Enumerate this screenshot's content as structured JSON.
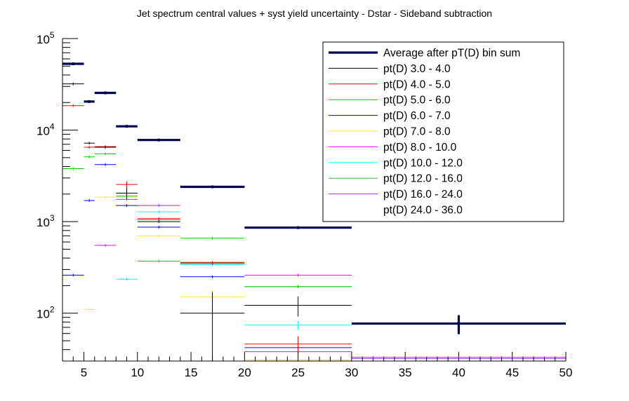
{
  "chart_data": {
    "type": "line",
    "title": "Jet spectrum central values + syst yield uncertainty - Dstar - Sideband subtraction",
    "xlabel": "",
    "ylabel": "",
    "xlim": [
      3,
      50
    ],
    "ylim": [
      30,
      100000
    ],
    "yscale": "log",
    "grid": false,
    "legend_position": "top-right",
    "x_ticks": [
      5,
      10,
      15,
      20,
      25,
      30,
      35,
      40,
      45,
      50
    ],
    "x_tick_labels": [
      "5",
      "10",
      "15",
      "20",
      "25",
      "30",
      "35",
      "40",
      "45",
      "50"
    ],
    "y_ticks": [
      {
        "value": 100,
        "base": "10",
        "exp": "2"
      },
      {
        "value": 1000,
        "base": "10",
        "exp": "3"
      },
      {
        "value": 10000,
        "base": "10",
        "exp": "4"
      },
      {
        "value": 100000,
        "base": "10",
        "exp": "5"
      }
    ],
    "series": [
      {
        "name": "Average after pT(D) bin sum",
        "color": "#000055",
        "width": 3.2,
        "bins": [
          [
            3,
            5,
            53000,
            0
          ],
          [
            5,
            6,
            20500,
            0
          ],
          [
            6,
            8,
            25500,
            0
          ],
          [
            8,
            10,
            11000,
            0
          ],
          [
            10,
            14,
            7800,
            0
          ],
          [
            14,
            20,
            2400,
            0
          ],
          [
            20,
            30,
            860,
            0
          ],
          [
            30,
            50,
            77,
            18
          ]
        ]
      },
      {
        "name": "pt(D) 3.0 - 4.0",
        "color": "#000000",
        "width": 1,
        "bins": [
          [
            3,
            5,
            32000,
            0
          ],
          [
            5,
            6,
            7200,
            0
          ],
          [
            6,
            8,
            6500,
            0
          ],
          [
            8,
            10,
            2050,
            300
          ],
          [
            10,
            14,
            1000,
            0
          ],
          [
            14,
            20,
            100,
            70
          ],
          [
            20,
            30,
            122,
            30
          ]
        ]
      },
      {
        "name": "pt(D) 4.0 - 5.0",
        "color": "#ff0000",
        "width": 1,
        "bins": [
          [
            3,
            5,
            18500,
            0
          ],
          [
            5,
            6,
            6500,
            0
          ],
          [
            6,
            8,
            6600,
            0
          ],
          [
            8,
            10,
            2550,
            200
          ],
          [
            10,
            14,
            1080,
            0
          ],
          [
            14,
            20,
            355,
            0
          ],
          [
            20,
            30,
            46,
            10
          ]
        ]
      },
      {
        "name": "pt(D) 5.0 - 6.0",
        "color": "#00cc00",
        "width": 1,
        "bins": [
          [
            3,
            5,
            3800,
            0
          ],
          [
            5,
            6,
            5100,
            0
          ],
          [
            6,
            8,
            5500,
            0
          ],
          [
            8,
            10,
            1900,
            0
          ],
          [
            10,
            14,
            1050,
            0
          ],
          [
            14,
            20,
            660,
            0
          ],
          [
            20,
            30,
            195,
            0
          ]
        ]
      },
      {
        "name": "pt(D) 6.0 - 7.0",
        "color": "#0000ff",
        "width": 1,
        "bins": [
          [
            3,
            5,
            260,
            0
          ],
          [
            5,
            6,
            1700,
            0
          ],
          [
            6,
            8,
            4200,
            0
          ],
          [
            8,
            10,
            1500,
            0
          ],
          [
            10,
            14,
            870,
            0
          ],
          [
            14,
            20,
            250,
            0
          ],
          [
            20,
            30,
            42,
            0
          ]
        ]
      },
      {
        "name": "pt(D) 7.0 - 8.0",
        "color": "#ffee00",
        "width": 1,
        "bins": [
          [
            3,
            5,
            0,
            0
          ],
          [
            5,
            6,
            110,
            0
          ],
          [
            6,
            8,
            1850,
            0
          ],
          [
            8,
            10,
            1850,
            0
          ],
          [
            10,
            14,
            700,
            0
          ],
          [
            14,
            20,
            150,
            30
          ],
          [
            20,
            30,
            31,
            0
          ]
        ]
      },
      {
        "name": "pt(D) 8.0 - 10.0",
        "color": "#ff00ff",
        "width": 1,
        "bins": [
          [
            3,
            5,
            0,
            0
          ],
          [
            5,
            6,
            0,
            0
          ],
          [
            6,
            8,
            550,
            0
          ],
          [
            8,
            10,
            1750,
            0
          ],
          [
            10,
            14,
            1500,
            0
          ],
          [
            14,
            20,
            350,
            0
          ],
          [
            20,
            30,
            260,
            0
          ],
          [
            30,
            50,
            33,
            0
          ]
        ]
      },
      {
        "name": "pt(D) 10.0 - 12.0",
        "color": "#00ffff",
        "width": 1,
        "bins": [
          [
            3,
            5,
            0,
            0
          ],
          [
            5,
            6,
            0,
            0
          ],
          [
            6,
            8,
            0,
            0
          ],
          [
            8,
            10,
            235,
            0
          ],
          [
            10,
            14,
            1280,
            0
          ],
          [
            14,
            20,
            340,
            0
          ],
          [
            20,
            30,
            74,
            8
          ]
        ]
      },
      {
        "name": "pt(D) 12.0 - 16.0",
        "color": "#33bb33",
        "width": 1,
        "bins": [
          [
            10,
            14,
            370,
            0
          ],
          [
            14,
            20,
            360,
            0
          ],
          [
            20,
            30,
            195,
            0
          ]
        ]
      },
      {
        "name": "pt(D) 16.0 - 24.0",
        "color": "#9933ee",
        "width": 1,
        "bins": [
          [
            14,
            20,
            340,
            0
          ],
          [
            20,
            30,
            38,
            0
          ],
          [
            30,
            50,
            32,
            0
          ]
        ]
      },
      {
        "name": "pt(D) 24.0 - 36.0",
        "color": "#ffffff",
        "width": 1,
        "bins": []
      }
    ]
  }
}
